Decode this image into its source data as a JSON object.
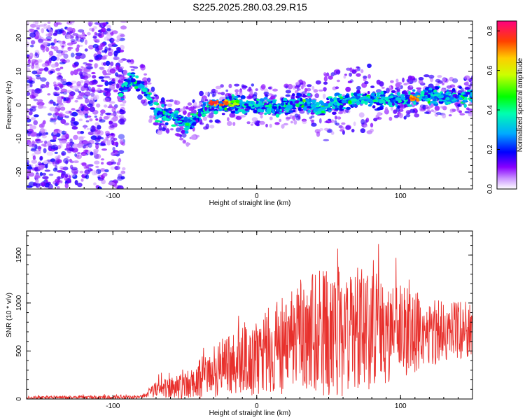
{
  "title": "S225.2025.280.03.29.R15",
  "chart_data": [
    {
      "type": "heatmap",
      "xlabel": "Height of straight line (km)",
      "ylabel": "Frequency (Hz)",
      "xlim": [
        -160,
        150
      ],
      "ylim": [
        -25,
        25
      ],
      "x_ticks": [
        -100,
        0,
        100
      ],
      "x_tick_labels": [
        "-100",
        "0",
        "100"
      ],
      "y_ticks": [
        -20,
        -10,
        0,
        10,
        20
      ],
      "y_tick_labels": [
        "-20",
        "-10",
        "0",
        "10",
        "20"
      ],
      "colorbar": {
        "label": "Normalized spectral amplitude",
        "range": [
          0,
          0.85
        ],
        "ticks": [
          0.0,
          0.2,
          0.4,
          0.6,
          0.8
        ],
        "tick_labels": [
          "0.0",
          "0.2",
          "0.4",
          "0.6",
          "0.8"
        ]
      },
      "ridge": [
        {
          "x": -95,
          "y": 3
        },
        {
          "x": -88,
          "y": 8
        },
        {
          "x": -80,
          "y": 6
        },
        {
          "x": -75,
          "y": 2
        },
        {
          "x": -70,
          "y": -2
        },
        {
          "x": -62,
          "y": -3
        },
        {
          "x": -55,
          "y": -4
        },
        {
          "x": -48,
          "y": -6
        },
        {
          "x": -42,
          "y": -4
        },
        {
          "x": -35,
          "y": -1
        },
        {
          "x": -25,
          "y": 0
        },
        {
          "x": -15,
          "y": 0
        },
        {
          "x": 0,
          "y": 0
        },
        {
          "x": 15,
          "y": -1
        },
        {
          "x": 30,
          "y": 1
        },
        {
          "x": 45,
          "y": -1
        },
        {
          "x": 60,
          "y": 1
        },
        {
          "x": 75,
          "y": 2
        },
        {
          "x": 90,
          "y": 1
        },
        {
          "x": 105,
          "y": 2
        },
        {
          "x": 120,
          "y": 3
        },
        {
          "x": 135,
          "y": 2
        },
        {
          "x": 150,
          "y": 3
        }
      ],
      "peaks": [
        {
          "x": -30,
          "y": 0.5,
          "value": 0.82
        },
        {
          "x": -22,
          "y": 0.6,
          "value": 0.8
        },
        {
          "x": -16,
          "y": 0.4,
          "value": 0.6
        },
        {
          "x": 110,
          "y": 2,
          "value": 0.75
        }
      ]
    },
    {
      "type": "line",
      "xlabel": "Height of straight line (km)",
      "ylabel": "SNR (10 * v/v)",
      "xlim": [
        -160,
        150
      ],
      "ylim": [
        0,
        1750
      ],
      "x_ticks": [
        -100,
        0,
        100
      ],
      "x_tick_labels": [
        "-100",
        "0",
        "100"
      ],
      "y_ticks": [
        0,
        500,
        1000,
        1500
      ],
      "y_tick_labels": [
        "0",
        "500",
        "1000",
        "1500"
      ],
      "series": [
        {
          "name": "SNR",
          "color": "#e8302c",
          "envelope": [
            {
              "x": -160,
              "mean": 15,
              "spread": 15
            },
            {
              "x": -80,
              "mean": 20,
              "spread": 20
            },
            {
              "x": -70,
              "mean": 100,
              "spread": 80
            },
            {
              "x": -50,
              "mean": 150,
              "spread": 150
            },
            {
              "x": -35,
              "mean": 250,
              "spread": 250
            },
            {
              "x": -20,
              "mean": 350,
              "spread": 300
            },
            {
              "x": 0,
              "mean": 420,
              "spread": 400
            },
            {
              "x": 20,
              "mean": 600,
              "spread": 550
            },
            {
              "x": 40,
              "mean": 700,
              "spread": 650
            },
            {
              "x": 60,
              "mean": 700,
              "spread": 700
            },
            {
              "x": 80,
              "mean": 700,
              "spread": 650
            },
            {
              "x": 100,
              "mean": 700,
              "spread": 500
            },
            {
              "x": 120,
              "mean": 700,
              "spread": 350
            },
            {
              "x": 140,
              "mean": 720,
              "spread": 300
            },
            {
              "x": 150,
              "mean": 720,
              "spread": 300
            }
          ]
        }
      ]
    }
  ]
}
